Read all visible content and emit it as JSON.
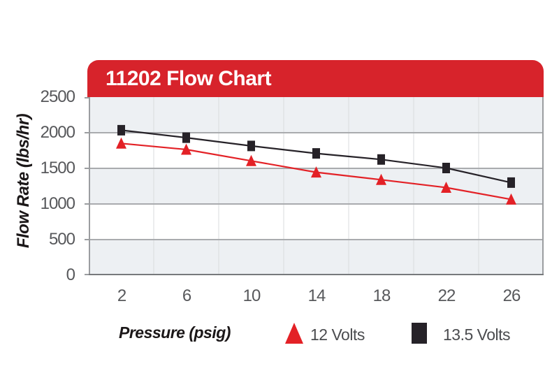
{
  "title_bar": {
    "title": "11202 Flow Chart"
  },
  "colors": {
    "header_red": "#d7232b",
    "series_red": "#e32126",
    "series_black": "#262228",
    "band_gray": "#edf0f3",
    "grid_line": "#a9abae",
    "grid_vline": "#d9dbde",
    "plot_border": "#9b9da0",
    "axis_line": "#77797c",
    "tick_text": "#57585b",
    "legend_text": "#4b4c4f",
    "axis_title_text": "#1b1718",
    "title_text": "#ffffff"
  },
  "y_axis": {
    "title": "Flow Rate (lbs/hr)",
    "ticks": [
      2500,
      2000,
      1500,
      1000,
      500,
      0
    ],
    "min": 0,
    "max": 2500
  },
  "x_axis": {
    "title": "Pressure (psig)",
    "categories": [
      "2",
      "6",
      "10",
      "14",
      "18",
      "22",
      "26"
    ]
  },
  "legend": {
    "items": [
      {
        "label": "12 Volts"
      },
      {
        "label": "13.5 Volts"
      }
    ]
  },
  "chart_data": {
    "type": "line",
    "title": "11202 Flow Chart",
    "xlabel": "Pressure (psig)",
    "ylabel": "Flow Rate (lbs/hr)",
    "x": [
      2,
      6,
      10,
      14,
      18,
      22,
      26
    ],
    "ylim": [
      0,
      2500
    ],
    "grid": "horizontal-major-with-alternating-bands",
    "legend_position": "bottom",
    "series": [
      {
        "name": "12 Volts",
        "marker": "triangle",
        "color": "#e32126",
        "values": [
          1850,
          1765,
          1605,
          1445,
          1340,
          1230,
          1065
        ]
      },
      {
        "name": "13.5 Volts",
        "marker": "square",
        "color": "#262228",
        "values": [
          2035,
          1930,
          1815,
          1710,
          1625,
          1505,
          1300
        ]
      }
    ]
  }
}
